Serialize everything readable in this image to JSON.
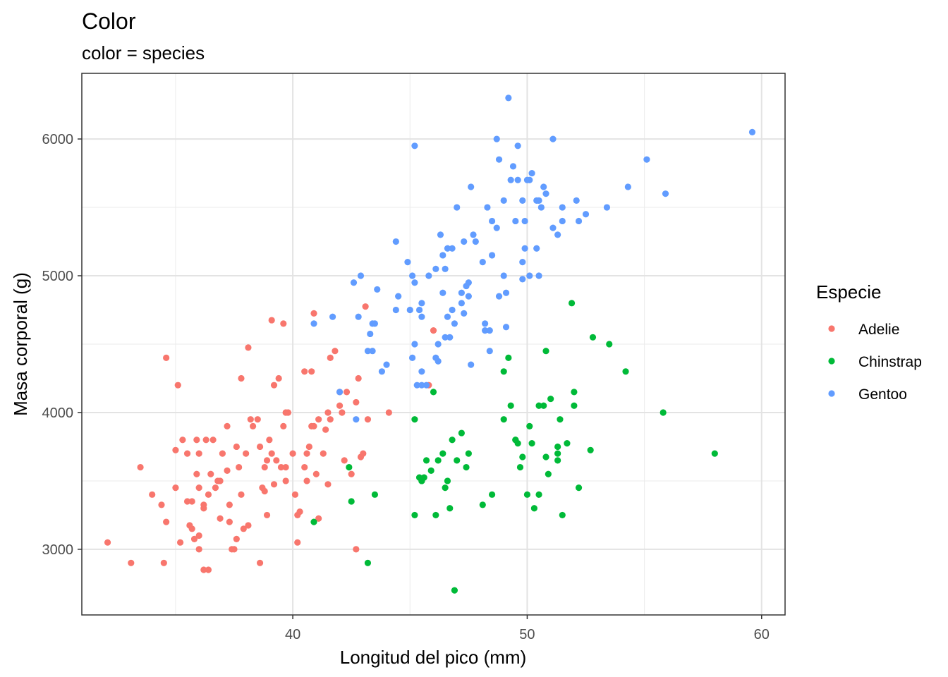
{
  "chart_data": {
    "type": "scatter",
    "title": "Color",
    "subtitle": "color = species",
    "xlabel": "Longitud del pico (mm)",
    "ylabel": "Masa corporal (g)",
    "xlim": [
      31.0,
      61.0
    ],
    "ylim": [
      2520,
      6480
    ],
    "x_ticks": [
      40,
      50,
      60
    ],
    "y_ticks": [
      3000,
      4000,
      5000,
      6000
    ],
    "x_minor": [
      35,
      45,
      55
    ],
    "y_minor": [
      3500,
      4500,
      5500
    ],
    "grid": true,
    "legend": {
      "title": "Especie",
      "position": "right"
    },
    "series": [
      {
        "name": "Adelie",
        "color": "#F8766D",
        "points": [
          [
            32.1,
            3050
          ],
          [
            33.1,
            2900
          ],
          [
            33.5,
            3600
          ],
          [
            34.0,
            3400
          ],
          [
            34.4,
            3325
          ],
          [
            34.5,
            2900
          ],
          [
            34.6,
            3200
          ],
          [
            34.6,
            4400
          ],
          [
            35.0,
            3450
          ],
          [
            35.1,
            4200
          ],
          [
            35.0,
            3725
          ],
          [
            35.2,
            3050
          ],
          [
            35.3,
            3800
          ],
          [
            35.5,
            3700
          ],
          [
            35.5,
            3350
          ],
          [
            35.6,
            3175
          ],
          [
            35.7,
            3350
          ],
          [
            35.7,
            3150
          ],
          [
            35.9,
            3550
          ],
          [
            35.9,
            3800
          ],
          [
            36.0,
            3100
          ],
          [
            36.0,
            3450
          ],
          [
            36.0,
            3000
          ],
          [
            36.0,
            3700
          ],
          [
            36.2,
            3300
          ],
          [
            36.2,
            2850
          ],
          [
            36.2,
            3325
          ],
          [
            36.3,
            3800
          ],
          [
            36.4,
            3400
          ],
          [
            36.5,
            3550
          ],
          [
            36.6,
            3800
          ],
          [
            36.7,
            3450
          ],
          [
            36.8,
            3500
          ],
          [
            36.9,
            3500
          ],
          [
            37.0,
            3700
          ],
          [
            37.2,
            3900
          ],
          [
            37.3,
            3200
          ],
          [
            37.4,
            3000
          ],
          [
            37.5,
            3000
          ],
          [
            37.6,
            3750
          ],
          [
            37.7,
            3600
          ],
          [
            37.8,
            3400
          ],
          [
            37.9,
            3150
          ],
          [
            38.0,
            3700
          ],
          [
            38.1,
            3175
          ],
          [
            38.2,
            3950
          ],
          [
            38.3,
            3900
          ],
          [
            38.5,
            3950
          ],
          [
            38.6,
            3750
          ],
          [
            38.7,
            3450
          ],
          [
            38.8,
            3600
          ],
          [
            38.9,
            3650
          ],
          [
            39.0,
            3800
          ],
          [
            39.1,
            3700
          ],
          [
            39.2,
            3475
          ],
          [
            39.3,
            3650
          ],
          [
            39.5,
            3600
          ],
          [
            39.6,
            3900
          ],
          [
            39.7,
            3600
          ],
          [
            39.8,
            4000
          ],
          [
            40.0,
            3700
          ],
          [
            40.1,
            3400
          ],
          [
            40.3,
            3275
          ],
          [
            40.5,
            3600
          ],
          [
            40.6,
            3700
          ],
          [
            40.7,
            3750
          ],
          [
            40.8,
            3900
          ],
          [
            40.9,
            3900
          ],
          [
            41.0,
            3550
          ],
          [
            41.1,
            3950
          ],
          [
            41.3,
            3700
          ],
          [
            41.4,
            3875
          ],
          [
            41.5,
            4000
          ],
          [
            41.6,
            3950
          ],
          [
            41.8,
            4450
          ],
          [
            42.0,
            4050
          ],
          [
            42.1,
            4000
          ],
          [
            42.2,
            3650
          ],
          [
            42.3,
            4150
          ],
          [
            42.5,
            3550
          ],
          [
            42.7,
            4075
          ],
          [
            42.8,
            4250
          ],
          [
            42.9,
            3675
          ],
          [
            43.1,
            4775
          ],
          [
            43.2,
            3950
          ],
          [
            44.1,
            4000
          ],
          [
            45.8,
            4200
          ],
          [
            46.0,
            4600
          ],
          [
            39.1,
            4675
          ],
          [
            39.6,
            4650
          ],
          [
            40.9,
            4725
          ],
          [
            37.8,
            4250
          ],
          [
            38.1,
            4475
          ],
          [
            36.9,
            3225
          ],
          [
            35.8,
            3075
          ],
          [
            38.6,
            2900
          ],
          [
            37.6,
            3075
          ],
          [
            41.1,
            3225
          ],
          [
            38.8,
            3425
          ],
          [
            40.2,
            3050
          ],
          [
            37.2,
            3575
          ],
          [
            39.7,
            4000
          ],
          [
            40.5,
            4300
          ],
          [
            40.8,
            4300
          ],
          [
            37.3,
            3325
          ],
          [
            36.4,
            2850
          ],
          [
            38.9,
            3250
          ],
          [
            39.7,
            3500
          ],
          [
            40.2,
            3250
          ],
          [
            41.5,
            3475
          ],
          [
            42.7,
            3000
          ],
          [
            39.2,
            4200
          ],
          [
            39.4,
            4250
          ],
          [
            41.6,
            4400
          ],
          [
            42.0,
            4150
          ],
          [
            43.0,
            3700
          ],
          [
            40.6,
            3500
          ]
        ]
      },
      {
        "name": "Chinstrap",
        "color": "#00BA38",
        "points": [
          [
            40.9,
            3200
          ],
          [
            42.4,
            3600
          ],
          [
            42.5,
            3350
          ],
          [
            43.2,
            2900
          ],
          [
            43.5,
            3400
          ],
          [
            45.2,
            3250
          ],
          [
            45.2,
            3950
          ],
          [
            45.4,
            3525
          ],
          [
            45.5,
            3500
          ],
          [
            45.6,
            3525
          ],
          [
            45.7,
            3650
          ],
          [
            45.9,
            3575
          ],
          [
            46.1,
            3250
          ],
          [
            46.2,
            3650
          ],
          [
            46.4,
            3700
          ],
          [
            46.5,
            3450
          ],
          [
            46.6,
            3500
          ],
          [
            46.7,
            3300
          ],
          [
            46.8,
            3800
          ],
          [
            46.9,
            2700
          ],
          [
            47.0,
            3650
          ],
          [
            47.5,
            3700
          ],
          [
            48.1,
            3325
          ],
          [
            48.5,
            3400
          ],
          [
            49.0,
            3950
          ],
          [
            49.0,
            4300
          ],
          [
            49.2,
            4400
          ],
          [
            49.3,
            4050
          ],
          [
            49.5,
            3800
          ],
          [
            49.6,
            3775
          ],
          [
            49.7,
            3600
          ],
          [
            49.8,
            3675
          ],
          [
            50.1,
            3900
          ],
          [
            50.2,
            3775
          ],
          [
            50.3,
            3300
          ],
          [
            50.5,
            4050
          ],
          [
            50.7,
            4050
          ],
          [
            50.8,
            3675
          ],
          [
            50.9,
            3550
          ],
          [
            51.0,
            4100
          ],
          [
            51.3,
            3650
          ],
          [
            51.4,
            3950
          ],
          [
            51.5,
            3250
          ],
          [
            51.7,
            3775
          ],
          [
            52.0,
            4150
          ],
          [
            52.0,
            4050
          ],
          [
            52.2,
            3450
          ],
          [
            52.7,
            3725
          ],
          [
            52.8,
            4550
          ],
          [
            53.5,
            4500
          ],
          [
            54.2,
            4300
          ],
          [
            55.8,
            4000
          ],
          [
            58.0,
            3700
          ],
          [
            51.3,
            3750
          ],
          [
            46.0,
            4150
          ],
          [
            50.0,
            3400
          ],
          [
            50.5,
            3400
          ],
          [
            51.9,
            4800
          ],
          [
            50.8,
            4450
          ],
          [
            45.5,
            3500
          ],
          [
            51.3,
            3700
          ],
          [
            47.2,
            3850
          ],
          [
            47.4,
            3600
          ],
          [
            49.5,
            3800
          ]
        ]
      },
      {
        "name": "Gentoo",
        "color": "#619CFF",
        "points": [
          [
            40.9,
            4650
          ],
          [
            41.7,
            4700
          ],
          [
            42.0,
            4150
          ],
          [
            42.6,
            4950
          ],
          [
            42.7,
            3950
          ],
          [
            42.8,
            4700
          ],
          [
            42.9,
            5000
          ],
          [
            43.2,
            4450
          ],
          [
            43.3,
            4575
          ],
          [
            43.4,
            4450
          ],
          [
            43.5,
            4650
          ],
          [
            43.6,
            4900
          ],
          [
            43.8,
            4300
          ],
          [
            44.0,
            4350
          ],
          [
            44.4,
            5250
          ],
          [
            44.5,
            4850
          ],
          [
            44.9,
            5100
          ],
          [
            45.0,
            4750
          ],
          [
            45.1,
            4400
          ],
          [
            45.1,
            5000
          ],
          [
            45.2,
            5950
          ],
          [
            45.2,
            4950
          ],
          [
            45.3,
            4200
          ],
          [
            45.4,
            4750
          ],
          [
            45.5,
            4700
          ],
          [
            45.5,
            4800
          ],
          [
            45.7,
            4200
          ],
          [
            46.1,
            4400
          ],
          [
            46.2,
            4375
          ],
          [
            46.2,
            4500
          ],
          [
            46.3,
            5300
          ],
          [
            46.4,
            4875
          ],
          [
            46.5,
            5050
          ],
          [
            46.6,
            4700
          ],
          [
            46.8,
            5200
          ],
          [
            46.9,
            4650
          ],
          [
            47.0,
            5500
          ],
          [
            47.2,
            4875
          ],
          [
            47.3,
            4725
          ],
          [
            47.4,
            4925
          ],
          [
            47.5,
            4850
          ],
          [
            47.6,
            5650
          ],
          [
            47.8,
            5250
          ],
          [
            48.1,
            5100
          ],
          [
            48.2,
            4600
          ],
          [
            48.4,
            4450
          ],
          [
            48.5,
            5400
          ],
          [
            48.7,
            5350
          ],
          [
            48.8,
            5850
          ],
          [
            49.0,
            5550
          ],
          [
            49.1,
            4625
          ],
          [
            49.2,
            6300
          ],
          [
            49.3,
            5700
          ],
          [
            49.4,
            5800
          ],
          [
            49.5,
            5400
          ],
          [
            49.6,
            5700
          ],
          [
            49.8,
            5550
          ],
          [
            49.9,
            5400
          ],
          [
            50.0,
            5700
          ],
          [
            50.1,
            5000
          ],
          [
            50.2,
            5750
          ],
          [
            50.4,
            5550
          ],
          [
            50.5,
            5550
          ],
          [
            50.6,
            5500
          ],
          [
            50.7,
            5650
          ],
          [
            50.8,
            5600
          ],
          [
            51.1,
            6000
          ],
          [
            51.3,
            5300
          ],
          [
            51.5,
            5500
          ],
          [
            52.1,
            5550
          ],
          [
            52.2,
            5400
          ],
          [
            52.5,
            5450
          ],
          [
            53.4,
            5500
          ],
          [
            54.3,
            5650
          ],
          [
            55.1,
            5850
          ],
          [
            55.9,
            5600
          ],
          [
            59.6,
            6050
          ],
          [
            48.7,
            6000
          ],
          [
            49.6,
            5950
          ],
          [
            49.9,
            5200
          ],
          [
            50.4,
            5200
          ],
          [
            48.5,
            5150
          ],
          [
            48.2,
            4650
          ],
          [
            47.5,
            4950
          ],
          [
            46.4,
            5150
          ],
          [
            46.6,
            5200
          ],
          [
            47.3,
            5250
          ],
          [
            48.3,
            5500
          ],
          [
            45.5,
            4200
          ],
          [
            46.7,
            4550
          ],
          [
            47.7,
            5300
          ],
          [
            49.0,
            5000
          ],
          [
            49.8,
            5100
          ],
          [
            45.5,
            4300
          ],
          [
            46.1,
            5050
          ],
          [
            47.6,
            4350
          ],
          [
            48.4,
            4600
          ],
          [
            49.1,
            4875
          ],
          [
            49.8,
            4975
          ],
          [
            50.1,
            5700
          ],
          [
            50.5,
            5000
          ],
          [
            51.1,
            5350
          ],
          [
            51.5,
            5400
          ],
          [
            46.8,
            4750
          ],
          [
            44.4,
            4750
          ],
          [
            45.2,
            4500
          ],
          [
            45.8,
            5000
          ],
          [
            43.4,
            4650
          ],
          [
            46.5,
            4550
          ],
          [
            47.2,
            4800
          ],
          [
            48.8,
            4850
          ]
        ]
      }
    ]
  }
}
